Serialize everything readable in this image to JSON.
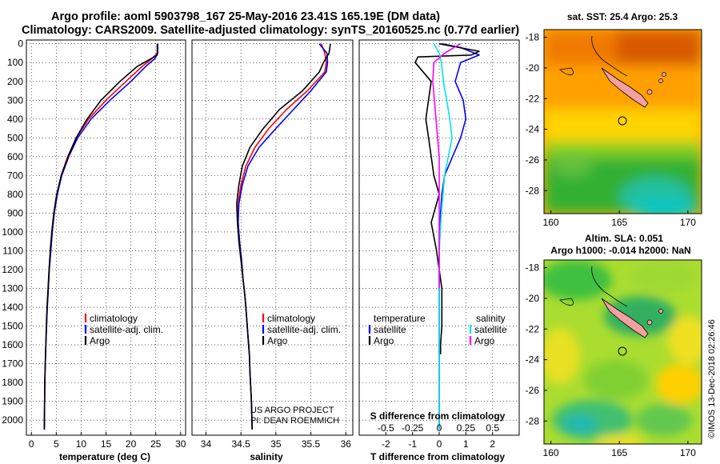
{
  "title_line1": "Argo profile: aoml 5903798_167 25-May-2016 23.41S 165.19E (DM data)",
  "title_line2": "Climatology: CARS2009. Satellite-adjusted climatology: synTS_20160525.nc (0.77d earlier)",
  "colors": {
    "climatology": "#ff0000",
    "satellite": "#0000ff",
    "argo": "#000000",
    "sat_salinity": "#00e5e5",
    "argo_salinity": "#ff00ff"
  },
  "depth_ticks": [
    "0",
    "100",
    "200",
    "300",
    "400",
    "500",
    "600",
    "700",
    "800",
    "900",
    "1000",
    "1100",
    "1200",
    "1300",
    "1400",
    "1500",
    "1600",
    "1700",
    "1800",
    "1900",
    "2000"
  ],
  "panels": {
    "temperature": {
      "xlabel": "temperature (deg C)",
      "xticks": [
        "0",
        "5",
        "10",
        "15",
        "20",
        "25",
        "30"
      ],
      "legend": [
        "climatology",
        "satellite-adj. clim.",
        "Argo"
      ]
    },
    "salinity": {
      "xlabel": "salinity",
      "xticks": [
        "34",
        "34.5",
        "35",
        "35.5",
        "36"
      ],
      "legend": [
        "climatology",
        "satellite-adj. clim.",
        "Argo"
      ],
      "note_line1": "US ARGO PROJECT",
      "note_line2": "PI: DEAN ROEMMICH"
    },
    "difference": {
      "xlabel": "T difference from climatology",
      "xticks": [
        "-2",
        "-1",
        "0",
        "1",
        "2"
      ],
      "top_label": "S difference from climatology",
      "top_ticks": [
        "-0.5",
        "-0.25",
        "0",
        "0.25",
        "0.5"
      ],
      "legend_temperature_title": "temperature",
      "legend_salinity_title": "salinity",
      "legend_items": [
        "satellite",
        "Argo",
        "satellite",
        "Argo"
      ]
    }
  },
  "maps": {
    "sst": {
      "title": "sat. SST: 25.4 Argo: 25.3",
      "yticks": [
        "-18",
        "-20",
        "-22",
        "-24",
        "-26",
        "-28"
      ],
      "xticks": [
        "160",
        "165",
        "170"
      ]
    },
    "sla": {
      "title_line1": "Altim. SLA: 0.051",
      "title_line2": "Argo h1000: -0.014 h2000: NaN",
      "yticks": [
        "-18",
        "-20",
        "-22",
        "-24",
        "-26",
        "-28"
      ],
      "xticks": [
        "160",
        "165",
        "170"
      ]
    }
  },
  "credit": "©IMOS 13-Dec-2018 02:26:46",
  "chart_data": [
    {
      "type": "line",
      "name": "temperature profile",
      "xlabel": "temperature (deg C)",
      "ylabel": "",
      "xlim": [
        -1,
        31
      ],
      "ylim": [
        2080,
        -20
      ],
      "y_inverted": true,
      "series": [
        {
          "name": "climatology",
          "color": "#ff0000",
          "x": [
            25.4,
            25.3,
            24.2,
            22.3,
            19.0,
            15.0,
            11.5,
            9.0,
            7.3,
            6.0,
            5.2,
            4.6,
            4.2,
            3.9,
            3.6,
            3.4,
            3.2,
            3.05,
            2.9,
            2.8,
            2.7,
            2.6
          ],
          "y": [
            0,
            50,
            80,
            120,
            200,
            300,
            400,
            500,
            600,
            700,
            800,
            900,
            1000,
            1100,
            1200,
            1300,
            1400,
            1500,
            1600,
            1700,
            1800,
            2050
          ]
        },
        {
          "name": "satellite-adj. clim.",
          "color": "#0000ff",
          "x": [
            25.4,
            25.4,
            24.8,
            23.0,
            20.0,
            15.8,
            12.0,
            9.3,
            7.5,
            6.1,
            5.2,
            4.6,
            4.2,
            3.9,
            3.6,
            3.4,
            3.2,
            3.05,
            2.9,
            2.8,
            2.7,
            2.6
          ],
          "y": [
            0,
            50,
            80,
            120,
            200,
            300,
            400,
            500,
            600,
            700,
            800,
            900,
            1000,
            1100,
            1200,
            1300,
            1400,
            1500,
            1600,
            1700,
            1800,
            2050
          ]
        },
        {
          "name": "Argo",
          "color": "#000000",
          "x": [
            25.3,
            25.3,
            24.0,
            21.3,
            17.8,
            14.0,
            11.2,
            9.0,
            7.4,
            6.0,
            5.1,
            4.5,
            4.1,
            3.8,
            3.55,
            3.35,
            3.15,
            3.0,
            2.9,
            2.8,
            2.7,
            2.6
          ],
          "y": [
            0,
            60,
            80,
            120,
            200,
            300,
            400,
            500,
            600,
            700,
            800,
            900,
            1000,
            1100,
            1200,
            1300,
            1400,
            1500,
            1600,
            1700,
            1800,
            2050
          ]
        }
      ]
    },
    {
      "type": "line",
      "name": "salinity profile",
      "xlabel": "salinity",
      "ylabel": "",
      "xlim": [
        33.8,
        36.1
      ],
      "ylim": [
        2080,
        -20
      ],
      "y_inverted": true,
      "series": [
        {
          "name": "climatology",
          "color": "#ff0000",
          "x": [
            35.65,
            35.7,
            35.72,
            35.7,
            35.45,
            35.15,
            34.9,
            34.7,
            34.57,
            34.5,
            34.46,
            34.46,
            34.48,
            34.51,
            34.53,
            34.56,
            34.58,
            34.6,
            34.62,
            34.63,
            34.65,
            34.66
          ],
          "y": [
            0,
            50,
            100,
            150,
            250,
            350,
            450,
            550,
            650,
            750,
            850,
            950,
            1050,
            1150,
            1250,
            1350,
            1450,
            1550,
            1650,
            1750,
            1900,
            2050
          ]
        },
        {
          "name": "satellite-adj. clim.",
          "color": "#0000ff",
          "x": [
            35.62,
            35.73,
            35.74,
            35.72,
            35.5,
            35.25,
            35.0,
            34.76,
            34.6,
            34.52,
            34.47,
            34.46,
            34.48,
            34.51,
            34.53,
            34.56,
            34.58,
            34.6,
            34.62,
            34.63,
            34.65,
            34.66
          ],
          "y": [
            0,
            50,
            100,
            150,
            250,
            350,
            450,
            550,
            650,
            750,
            850,
            950,
            1050,
            1150,
            1250,
            1350,
            1450,
            1550,
            1650,
            1750,
            1900,
            2050
          ]
        },
        {
          "name": "Argo",
          "color": "#000000",
          "x": [
            35.78,
            35.76,
            35.68,
            35.62,
            35.38,
            35.05,
            34.82,
            34.63,
            34.52,
            34.47,
            34.44,
            34.45,
            34.47,
            34.5,
            34.53,
            34.56,
            34.58,
            34.6,
            34.62,
            34.63,
            34.65,
            34.66
          ],
          "y": [
            0,
            50,
            100,
            150,
            250,
            350,
            450,
            550,
            650,
            750,
            850,
            950,
            1050,
            1150,
            1250,
            1350,
            1450,
            1550,
            1650,
            1750,
            1900,
            2050
          ]
        }
      ]
    },
    {
      "type": "line",
      "name": "difference from climatology",
      "xlabel": "T difference from climatology",
      "ylabel": "",
      "xlim": [
        -3,
        3
      ],
      "ylim": [
        2080,
        -20
      ],
      "y_inverted": true,
      "top_axis": {
        "label": "S difference from climatology",
        "lim": [
          -0.75,
          0.75
        ]
      },
      "series": [
        {
          "name": "temperature satellite",
          "axis": "T",
          "color": "#0000ff",
          "x": [
            0.1,
            0.8,
            1.5,
            0.8,
            0.6,
            0.9,
            1.0,
            0.8,
            0.5,
            0.2,
            0.1,
            0.05,
            0.0,
            0.0,
            0.0,
            0.0
          ],
          "y": [
            0,
            20,
            60,
            100,
            200,
            300,
            400,
            500,
            600,
            700,
            800,
            900,
            1000,
            1200,
            1500,
            2050
          ]
        },
        {
          "name": "temperature Argo",
          "axis": "T",
          "color": "#000000",
          "x": [
            0.0,
            1.5,
            1.2,
            -0.8,
            -0.9,
            -0.3,
            -0.5,
            -0.4,
            -0.3,
            -0.2,
            0.0,
            -0.3,
            -0.1,
            0.1,
            0.1,
            0.05,
            0.05
          ],
          "y": [
            0,
            40,
            60,
            70,
            100,
            200,
            400,
            500,
            600,
            700,
            800,
            950,
            1100,
            1300,
            1500,
            1600,
            1650
          ]
        },
        {
          "name": "salinity satellite",
          "axis": "S",
          "color": "#00e5e5",
          "x": [
            -0.05,
            0.0,
            0.02,
            0.04,
            0.1,
            0.12,
            0.05,
            0.02,
            0.0,
            0.0,
            0.0,
            0.0
          ],
          "y": [
            0,
            50,
            100,
            200,
            400,
            500,
            700,
            900,
            1100,
            1500,
            1800,
            2050
          ]
        },
        {
          "name": "salinity Argo",
          "axis": "S",
          "color": "#ff00ff",
          "x": [
            0.2,
            0.05,
            -0.05,
            -0.06,
            -0.03,
            0.0,
            0.0,
            0.0,
            0.0
          ],
          "y": [
            0,
            50,
            100,
            200,
            400,
            600,
            800,
            1100,
            1300
          ]
        }
      ]
    },
    {
      "type": "heatmap",
      "name": "sat. SST map",
      "xlim": [
        159.5,
        171
      ],
      "ylim": [
        -29.5,
        -17.5
      ],
      "colorbar": false
    },
    {
      "type": "heatmap",
      "name": "Altim. SLA map",
      "xlim": [
        159.5,
        171
      ],
      "ylim": [
        -29.5,
        -17.5
      ],
      "colorbar": false
    }
  ]
}
